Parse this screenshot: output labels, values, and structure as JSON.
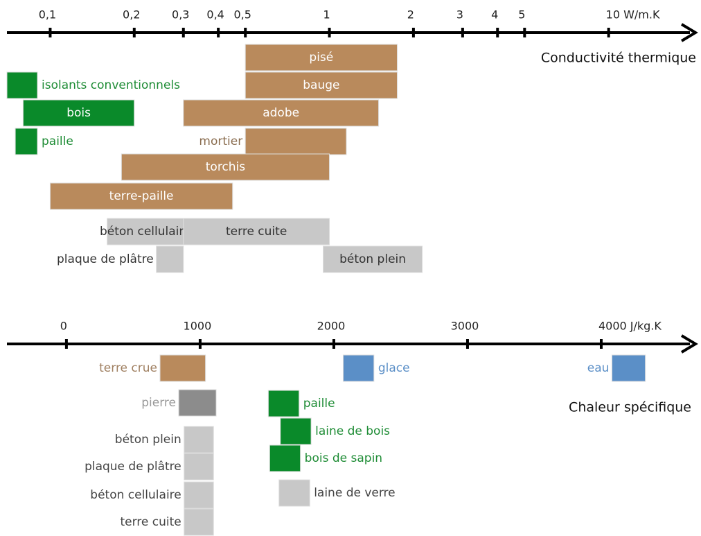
{
  "chart_data": [
    {
      "type": "range",
      "xlabel": "Conductivité thermique",
      "log": true,
      "xlim": [
        0.07,
        20
      ],
      "xticks": [
        {
          "value": 0.1,
          "label": "0,1"
        },
        {
          "value": 0.2,
          "label": "0,2"
        },
        {
          "value": 0.3,
          "label": "0,3"
        },
        {
          "value": 0.4,
          "label": "0,4"
        },
        {
          "value": 0.5,
          "label": "0,5"
        },
        1,
        2,
        3,
        4,
        5,
        {
          "value": 10,
          "label": "10 W/m.K"
        }
      ],
      "bars": [
        {
          "label": "pisé",
          "color": "#b98a5c",
          "label_color": "#ffffff",
          "label_position": "inside",
          "range": [
            0.5,
            1.75
          ]
        },
        {
          "label": "isolants conventionnels",
          "color": "#0a8a2a",
          "label_color": "#1e8c35",
          "label_position": "right",
          "range": [
            0.07,
            0.09
          ]
        },
        {
          "label": "bauge",
          "color": "#b98a5c",
          "label_color": "#ffffff",
          "label_position": "inside",
          "range": [
            0.5,
            1.75
          ]
        },
        {
          "label": "bois",
          "color": "#0a8a2a",
          "label_color": "#ffffff",
          "label_position": "inside",
          "range": [
            0.08,
            0.2
          ]
        },
        {
          "label": "adobe",
          "color": "#b98a5c",
          "label_color": "#ffffff",
          "label_position": "inside",
          "range": [
            0.3,
            1.5
          ]
        },
        {
          "label": "paille",
          "color": "#0a8a2a",
          "label_color": "#1e8c35",
          "label_position": "right",
          "range": [
            0.075,
            0.09
          ]
        },
        {
          "label": "mortier",
          "color": "#b98a5c",
          "label_color": "#8a6d4f",
          "label_position": "left",
          "range": [
            0.5,
            1.15
          ]
        },
        {
          "label": "torchis",
          "color": "#b98a5c",
          "label_color": "#ffffff",
          "label_position": "inside",
          "range": [
            0.18,
            1
          ]
        },
        {
          "label": "terre-paille",
          "color": "#b98a5c",
          "label_color": "#ffffff",
          "label_position": "inside",
          "range": [
            0.1,
            0.45
          ]
        },
        {
          "label": "béton cellulaire",
          "color": "#c8c8c8",
          "label_color": "#333333",
          "label_position": "inside",
          "range": [
            0.16,
            0.3
          ]
        },
        {
          "label": "terre cuite",
          "color": "#c8c8c8",
          "label_color": "#333333",
          "label_position": "inside",
          "range": [
            0.3,
            1
          ]
        },
        {
          "label": "plaque de plâtre",
          "color": "#c8c8c8",
          "label_color": "#333333",
          "label_position": "left",
          "range": [
            0.24,
            0.3
          ]
        },
        {
          "label": "béton plein",
          "color": "#c8c8c8",
          "label_color": "#333333",
          "label_position": "inside",
          "range": [
            0.95,
            2.15
          ]
        }
      ]
    },
    {
      "type": "range",
      "xlabel": "Chaleur spécifique",
      "log": false,
      "xlim": [
        -445,
        4684
      ],
      "xticks": [
        0,
        1000,
        2000,
        3000,
        {
          "value": 4000,
          "label": "4000 J/kg.K"
        }
      ],
      "bars": [
        {
          "label": "terre crue",
          "color": "#b98a5c",
          "label_color": "#a08062",
          "label_position": "left",
          "range": [
            700,
            1040
          ]
        },
        {
          "label": "glace",
          "color": "#5b8fc7",
          "label_color": "#5b8fc7",
          "label_position": "right",
          "range": [
            2070,
            2300
          ]
        },
        {
          "label": "eau",
          "color": "#5b8fc7",
          "label_color": "#5b8fc7",
          "label_position": "left",
          "range": [
            4080,
            4330
          ]
        },
        {
          "label": "pierre",
          "color": "#8c8c8c",
          "label_color": "#999999",
          "label_position": "left",
          "range": [
            840,
            1120
          ]
        },
        {
          "label": "paille",
          "color": "#0a8a2a",
          "label_color": "#1e8c35",
          "label_position": "right",
          "range": [
            1510,
            1740
          ]
        },
        {
          "label": "béton plein",
          "color": "#c8c8c8",
          "label_color": "#444444",
          "label_position": "left",
          "range": [
            880,
            1100
          ]
        },
        {
          "label": "laine de bois",
          "color": "#0a8a2a",
          "label_color": "#1e8c35",
          "label_position": "right",
          "range": [
            1600,
            1830
          ]
        },
        {
          "label": "plaque de plâtre",
          "color": "#c8c8c8",
          "label_color": "#444444",
          "label_position": "left",
          "range": [
            880,
            1100
          ]
        },
        {
          "label": "bois de sapin",
          "color": "#0a8a2a",
          "label_color": "#1e8c35",
          "label_position": "right",
          "range": [
            1520,
            1750
          ]
        },
        {
          "label": "béton cellulaire",
          "color": "#c8c8c8",
          "label_color": "#444444",
          "label_position": "left",
          "range": [
            880,
            1100
          ]
        },
        {
          "label": "laine de verre",
          "color": "#c8c8c8",
          "label_color": "#444444",
          "label_position": "right",
          "range": [
            1590,
            1820
          ]
        },
        {
          "label": "terre cuite",
          "color": "#c8c8c8",
          "label_color": "#444444",
          "label_position": "left",
          "range": [
            880,
            1100
          ]
        }
      ]
    }
  ]
}
